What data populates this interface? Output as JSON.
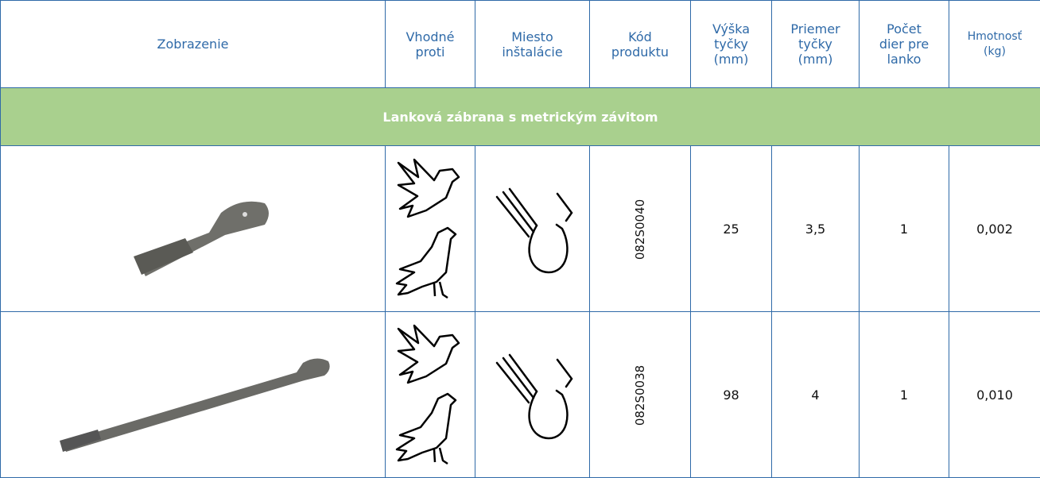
{
  "table": {
    "header": [
      "Zobrazenie",
      "Vhodné proti",
      "Miesto inštalácie",
      "Kód produktu",
      "Výška tyčky (mm)",
      "Priemer tyčky (mm)",
      "Počet dier pre lanko",
      "Hmotnosť (kg)"
    ],
    "section": "Lanková zábrana s metrickým závitom",
    "rows": [
      [
        "082S0040",
        "25",
        "3,5",
        "1",
        "0,002"
      ],
      [
        "082S0038",
        "98",
        "4",
        "1",
        "0,010"
      ]
    ]
  }
}
